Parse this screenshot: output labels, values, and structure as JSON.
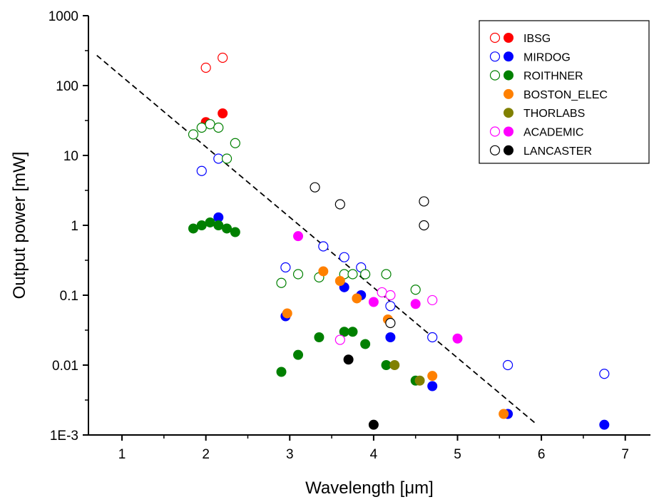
{
  "chart_data": {
    "type": "scatter",
    "xlabel": "Wavelength [μm]",
    "ylabel": "Output power [mW]",
    "xlim": [
      0.6,
      7.3
    ],
    "ylim": [
      0.001,
      1000
    ],
    "y_scale": "log",
    "x_ticks": [
      1,
      2,
      3,
      4,
      5,
      6,
      7
    ],
    "x_tick_labels": [
      "1",
      "2",
      "3",
      "4",
      "5",
      "6",
      "7"
    ],
    "y_ticks": [
      0.001,
      0.01,
      0.1,
      1,
      10,
      100,
      1000
    ],
    "y_tick_labels": [
      "1E-3",
      "0.01",
      "0.1",
      "1",
      "10",
      "100",
      "1000"
    ],
    "grid": false,
    "legend_position": "top-right",
    "legend": [
      {
        "name": "IBSG",
        "color": "#ff0000"
      },
      {
        "name": "MIRDOG",
        "color": "#0000ff"
      },
      {
        "name": "ROITHNER",
        "color": "#008000"
      },
      {
        "name": "BOSTON_ELEC",
        "color": "#ff8000",
        "hollow": false
      },
      {
        "name": "THORLABS",
        "color": "#808000",
        "hollow": false
      },
      {
        "name": "ACADEMIC",
        "color": "#ff00ff"
      },
      {
        "name": "LANCASTER",
        "color": "#000000"
      }
    ],
    "series": [
      {
        "name": "IBSG",
        "color": "#ff0000",
        "filled": false,
        "points": [
          [
            2.0,
            180
          ],
          [
            2.2,
            250
          ]
        ]
      },
      {
        "name": "IBSG",
        "color": "#ff0000",
        "filled": true,
        "points": [
          [
            2.0,
            30
          ],
          [
            2.2,
            40
          ]
        ]
      },
      {
        "name": "MIRDOG",
        "color": "#0000ff",
        "filled": false,
        "points": [
          [
            1.95,
            6
          ],
          [
            2.15,
            9
          ],
          [
            2.95,
            0.25
          ],
          [
            3.4,
            0.5
          ],
          [
            3.65,
            0.35
          ],
          [
            3.85,
            0.25
          ],
          [
            4.2,
            0.07
          ],
          [
            4.7,
            0.025
          ],
          [
            5.6,
            0.01
          ],
          [
            6.75,
            0.0075
          ]
        ]
      },
      {
        "name": "MIRDOG",
        "color": "#0000ff",
        "filled": true,
        "points": [
          [
            2.15,
            1.3
          ],
          [
            2.95,
            0.05
          ],
          [
            3.65,
            0.13
          ],
          [
            3.85,
            0.1
          ],
          [
            4.2,
            0.025
          ],
          [
            4.7,
            0.005
          ],
          [
            5.6,
            0.002
          ],
          [
            6.75,
            0.0014
          ]
        ]
      },
      {
        "name": "ROITHNER",
        "color": "#008000",
        "filled": false,
        "points": [
          [
            1.85,
            20
          ],
          [
            1.95,
            25
          ],
          [
            2.05,
            28
          ],
          [
            2.15,
            25
          ],
          [
            2.25,
            9
          ],
          [
            2.35,
            15
          ],
          [
            2.9,
            0.15
          ],
          [
            3.1,
            0.2
          ],
          [
            3.35,
            0.18
          ],
          [
            3.65,
            0.2
          ],
          [
            3.75,
            0.2
          ],
          [
            3.9,
            0.2
          ],
          [
            4.15,
            0.2
          ],
          [
            4.5,
            0.12
          ]
        ]
      },
      {
        "name": "ROITHNER",
        "color": "#008000",
        "filled": true,
        "points": [
          [
            1.85,
            0.9
          ],
          [
            1.95,
            1.0
          ],
          [
            2.05,
            1.1
          ],
          [
            2.15,
            1.0
          ],
          [
            2.25,
            0.9
          ],
          [
            2.35,
            0.8
          ],
          [
            2.9,
            0.008
          ],
          [
            3.1,
            0.014
          ],
          [
            3.35,
            0.025
          ],
          [
            3.65,
            0.03
          ],
          [
            3.75,
            0.03
          ],
          [
            3.9,
            0.02
          ],
          [
            4.15,
            0.01
          ],
          [
            4.5,
            0.006
          ]
        ]
      },
      {
        "name": "BOSTON_ELEC",
        "color": "#ff8000",
        "filled": true,
        "points": [
          [
            2.97,
            0.055
          ],
          [
            3.4,
            0.22
          ],
          [
            3.6,
            0.16
          ],
          [
            3.8,
            0.09
          ],
          [
            4.17,
            0.045
          ],
          [
            4.7,
            0.007
          ],
          [
            5.55,
            0.002
          ]
        ]
      },
      {
        "name": "THORLABS",
        "color": "#808000",
        "filled": true,
        "points": [
          [
            4.25,
            0.01
          ],
          [
            4.55,
            0.006
          ]
        ]
      },
      {
        "name": "ACADEMIC",
        "color": "#ff00ff",
        "filled": false,
        "points": [
          [
            3.6,
            0.023
          ],
          [
            4.1,
            0.11
          ],
          [
            4.2,
            0.1
          ],
          [
            4.7,
            0.085
          ]
        ]
      },
      {
        "name": "ACADEMIC",
        "color": "#ff00ff",
        "filled": true,
        "points": [
          [
            3.1,
            0.7
          ],
          [
            4.0,
            0.08
          ],
          [
            4.5,
            0.075
          ],
          [
            5.0,
            0.024
          ]
        ]
      },
      {
        "name": "LANCASTER",
        "color": "#000000",
        "filled": false,
        "points": [
          [
            3.3,
            3.5
          ],
          [
            3.6,
            2.0
          ],
          [
            4.2,
            0.04
          ],
          [
            4.6,
            2.2
          ],
          [
            4.6,
            1.0
          ]
        ]
      },
      {
        "name": "LANCASTER",
        "color": "#000000",
        "filled": true,
        "points": [
          [
            3.7,
            0.012
          ],
          [
            4.0,
            0.0014
          ]
        ]
      }
    ],
    "trendline": {
      "style": "dashed",
      "color": "#000000",
      "points": [
        [
          0.7,
          270
        ],
        [
          5.95,
          0.0014
        ]
      ]
    }
  }
}
